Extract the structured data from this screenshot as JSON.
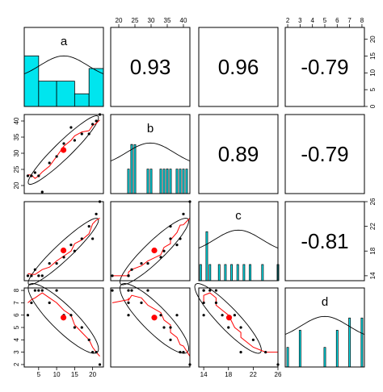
{
  "chart_data": {
    "type": "scatter-matrix",
    "variables": [
      "a",
      "b",
      "c",
      "d"
    ],
    "ranges": {
      "a": [
        1,
        23
      ],
      "b": [
        17.5,
        42
      ],
      "c": [
        13.2,
        26
      ],
      "d": [
        1.8,
        8.2
      ]
    },
    "ticks": {
      "a": [
        5,
        10,
        15,
        20
      ],
      "b": [
        20,
        25,
        30,
        35,
        40
      ],
      "c": [
        14,
        18,
        22,
        26
      ],
      "d": [
        2,
        3,
        4,
        5,
        6,
        7,
        8
      ]
    },
    "counts_axis_ticks": [
      0,
      5,
      10,
      15,
      20
    ],
    "correlations": [
      {
        "row": 0,
        "col": 1,
        "label": "0.93"
      },
      {
        "row": 0,
        "col": 2,
        "label": "0.96"
      },
      {
        "row": 0,
        "col": 3,
        "label": "-0.79"
      },
      {
        "row": 1,
        "col": 2,
        "label": "0.89"
      },
      {
        "row": 1,
        "col": 3,
        "label": "-0.79"
      },
      {
        "row": 2,
        "col": 3,
        "label": "-0.81"
      }
    ],
    "observations": [
      {
        "a": 2,
        "b": 23,
        "c": 14,
        "d": 6
      },
      {
        "a": 3,
        "b": 23,
        "c": 14,
        "d": 7
      },
      {
        "a": 4,
        "b": 24,
        "c": 15,
        "d": 8
      },
      {
        "a": 5,
        "b": 23,
        "c": 14,
        "d": 8
      },
      {
        "a": 6,
        "b": 18,
        "c": 14,
        "d": 8
      },
      {
        "a": 8,
        "b": 27,
        "c": 16,
        "d": 7
      },
      {
        "a": 10,
        "b": 29,
        "c": 16,
        "d": 8
      },
      {
        "a": 12,
        "b": 33,
        "c": 17,
        "d": 6
      },
      {
        "a": 14,
        "b": 38,
        "c": 19,
        "d": 6
      },
      {
        "a": 15,
        "b": 34,
        "c": 18,
        "d": 5
      },
      {
        "a": 17,
        "b": 36,
        "c": 20,
        "d": 5
      },
      {
        "a": 19,
        "b": 36,
        "c": 22,
        "d": 4
      },
      {
        "a": 20,
        "b": 39,
        "c": 20,
        "d": 3
      },
      {
        "a": 21,
        "b": 40,
        "c": 24,
        "d": 3
      },
      {
        "a": 22,
        "b": 42,
        "c": 26,
        "d": 2
      }
    ],
    "means": {
      "a": 11.9,
      "b": 31.0,
      "c": 18.1,
      "d": 5.8
    },
    "histograms": {
      "a": {
        "breaks": [
          1,
          5,
          10,
          15,
          19,
          23
        ],
        "counts": [
          16,
          8,
          8,
          4,
          12
        ]
      },
      "b": {
        "values": [
          23,
          24,
          24,
          24,
          25,
          29,
          30,
          33,
          34,
          35,
          35,
          36,
          38,
          39,
          40,
          41
        ],
        "heights": [
          0.5,
          1.0,
          1.0,
          1.0,
          1.0,
          0.5,
          0.5,
          0.5,
          0.5,
          0.5,
          0.5,
          0.5,
          0.5,
          0.5,
          0.5,
          0.5
        ]
      },
      "c": {
        "values": [
          13.5,
          14.5,
          15,
          16.5,
          17.5,
          18.5,
          19.5,
          20.5,
          21.5,
          23.5,
          26
        ],
        "heights": [
          0.33,
          1.0,
          0.33,
          0.33,
          0.33,
          0.33,
          0.33,
          0.33,
          0.33,
          0.33,
          0.33
        ]
      },
      "d": {
        "values": [
          2,
          3,
          5,
          6,
          7,
          8
        ],
        "heights": [
          0.4,
          0.75,
          0.4,
          0.75,
          1.0,
          1.0
        ]
      }
    },
    "colors": {
      "hist_fill": "#00e5ee",
      "point": "#000000",
      "mean_point": "#ff0000",
      "smoother": "#ff0000",
      "ellipse": "#000000"
    },
    "grid": false
  }
}
